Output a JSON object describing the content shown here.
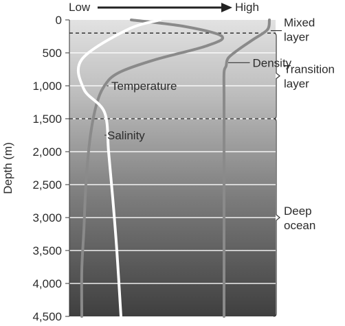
{
  "chart_data": {
    "type": "line",
    "top_scale": {
      "low_label": "Low",
      "high_label": "High"
    },
    "ylabel": "Depth (m)",
    "ylim": [
      0,
      4500
    ],
    "y_ticks": [
      {
        "value": 0,
        "label": "0"
      },
      {
        "value": 500,
        "label": "500"
      },
      {
        "value": 1000,
        "label": "1,000"
      },
      {
        "value": 1500,
        "label": "1,500"
      },
      {
        "value": 2000,
        "label": "2,000"
      },
      {
        "value": 2500,
        "label": "2,500"
      },
      {
        "value": 3000,
        "label": "3,000"
      },
      {
        "value": 3500,
        "label": "3,500"
      },
      {
        "value": 4000,
        "label": "4,000"
      },
      {
        "value": 4500,
        "label": "4,500"
      }
    ],
    "grid": true,
    "xlim": [
      0,
      100
    ],
    "layer_boundaries": [
      200,
      1500
    ],
    "layers": [
      {
        "name": "Mixed layer",
        "lines": [
          "Mixed",
          "layer"
        ],
        "from": 0,
        "to": 200
      },
      {
        "name": "Transition layer",
        "lines": [
          "Transition",
          "layer"
        ],
        "from": 200,
        "to": 1500
      },
      {
        "name": "Deep ocean",
        "lines": [
          "Deep",
          "ocean"
        ],
        "from": 1500,
        "to": 4500
      }
    ],
    "series": [
      {
        "name": "Density",
        "color": "#8a8a8a",
        "label_at": {
          "x": 87.5,
          "y": 650
        },
        "points": [
          [
            97,
            0
          ],
          [
            96,
            150
          ],
          [
            89,
            300
          ],
          [
            82,
            450
          ],
          [
            77,
            580
          ],
          [
            76,
            700
          ],
          [
            75,
            800
          ],
          [
            75,
            1200
          ],
          [
            75,
            2000
          ],
          [
            75,
            3000
          ],
          [
            75,
            4000
          ],
          [
            75,
            4500
          ]
        ]
      },
      {
        "name": "Temperature",
        "color": "#8a8a8a",
        "label_at": {
          "x": 19,
          "y": 1000
        },
        "points": [
          [
            30,
            0
          ],
          [
            56,
            100
          ],
          [
            74,
            250
          ],
          [
            66,
            400
          ],
          [
            42,
            600
          ],
          [
            24,
            800
          ],
          [
            17,
            1000
          ],
          [
            13,
            1300
          ],
          [
            10,
            1800
          ],
          [
            8,
            2500
          ],
          [
            7,
            3200
          ],
          [
            6,
            3800
          ],
          [
            6,
            4500
          ]
        ]
      },
      {
        "name": "Salinity",
        "color": "#ffffff",
        "label_at": {
          "x": 17,
          "y": 1750
        },
        "points": [
          [
            44,
            0
          ],
          [
            28,
            150
          ],
          [
            6,
            600
          ],
          [
            7,
            1050
          ],
          [
            17,
            1400
          ],
          [
            19,
            2000
          ],
          [
            21,
            2700
          ],
          [
            23,
            3500
          ],
          [
            25,
            4500
          ]
        ]
      }
    ]
  }
}
